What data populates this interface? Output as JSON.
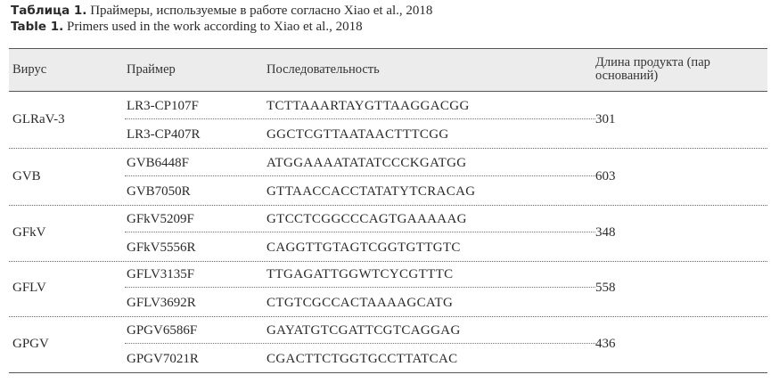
{
  "caption_ru": {
    "label": "Таблица 1.",
    "text": "Праймеры, используемые в работе согласно Xiao et al., 2018"
  },
  "caption_en": {
    "label": "Table 1.",
    "text": "Primers used in the work according to Xiao et al., 2018"
  },
  "headers": {
    "virus": "Вирус",
    "primer": "Праймер",
    "sequence": "Последовательность",
    "length_line1": "Длина продукта (пар",
    "length_line2": "оснований)"
  },
  "groups": [
    {
      "virus": "GLRaV-3",
      "length": "301",
      "primers": [
        {
          "name": "LR3-CP107F",
          "seq": "TCTTAAARTAYGTTAAGGACGG"
        },
        {
          "name": "LR3-CP407R",
          "seq": "GGCTCGTTAATAACTTTCGG"
        }
      ]
    },
    {
      "virus": "GVB",
      "length": "603",
      "primers": [
        {
          "name": "GVB6448F",
          "seq": "ATGGAAAATATATCCCKGATGG"
        },
        {
          "name": "GVB7050R",
          "seq": "GTTAACCACCTATATYTCRACAG"
        }
      ]
    },
    {
      "virus": "GFkV",
      "length": "348",
      "primers": [
        {
          "name": "GFkV5209F",
          "seq": "GTCCTCGGCCCAGTGAAAAAG"
        },
        {
          "name": "GFkV5556R",
          "seq": "CAGGTTGTAGTCGGTGTTGTC"
        }
      ]
    },
    {
      "virus": "GFLV",
      "length": "558",
      "primers": [
        {
          "name": "GFLV3135F",
          "seq": "TTGAGATTGGWTCYCGTTTC"
        },
        {
          "name": "GFLV3692R",
          "seq": "CTGTCGCCACTAAAAGCATG"
        }
      ]
    },
    {
      "virus": "GPGV",
      "length": "436",
      "primers": [
        {
          "name": "GPGV6586F",
          "seq": "GAYATGTCGATTCGTCAGGAG"
        },
        {
          "name": "GPGV7021R",
          "seq": "CGACTTCTGGTGCCTTATCAC"
        }
      ]
    }
  ]
}
